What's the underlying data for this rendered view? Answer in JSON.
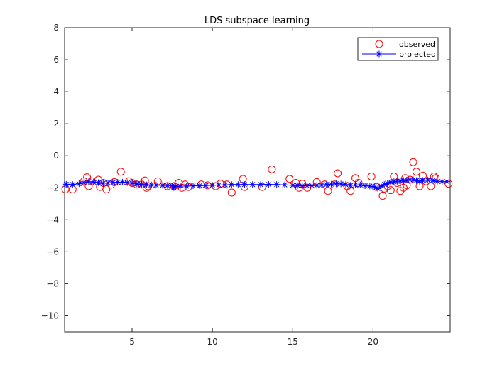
{
  "chart_data": {
    "type": "scatter",
    "title": "LDS subspace learning",
    "xlabel": "",
    "ylabel": "",
    "xlim": [
      0.8,
      24.8
    ],
    "ylim": [
      -11,
      8
    ],
    "xticks": [
      5,
      10,
      15,
      20
    ],
    "yticks": [
      8,
      6,
      4,
      2,
      0,
      -2,
      -4,
      -6,
      -8,
      -10
    ],
    "xtick_labels": [
      "5",
      "10",
      "15",
      "20"
    ],
    "ytick_labels": [
      "8",
      "6",
      "4",
      "2",
      "0",
      "−2",
      "−4",
      "−6",
      "−8",
      "−10"
    ],
    "grid": false,
    "legend_position": "top-right",
    "series": [
      {
        "name": "observed",
        "style": "markers-circle",
        "color": "#ff0000",
        "points": [
          [
            0.85,
            -2.1
          ],
          [
            1.3,
            -2.1
          ],
          [
            2.0,
            -1.6
          ],
          [
            2.2,
            -1.35
          ],
          [
            2.3,
            -1.9
          ],
          [
            2.5,
            -1.6
          ],
          [
            2.9,
            -1.5
          ],
          [
            3.0,
            -1.95
          ],
          [
            3.2,
            -1.7
          ],
          [
            3.4,
            -2.1
          ],
          [
            3.7,
            -1.8
          ],
          [
            3.9,
            -1.65
          ],
          [
            4.3,
            -1.0
          ],
          [
            4.8,
            -1.6
          ],
          [
            5.0,
            -1.7
          ],
          [
            5.3,
            -1.8
          ],
          [
            5.6,
            -1.8
          ],
          [
            5.8,
            -1.55
          ],
          [
            5.9,
            -2.0
          ],
          [
            6.0,
            -1.9
          ],
          [
            6.6,
            -1.6
          ],
          [
            7.2,
            -1.9
          ],
          [
            7.6,
            -1.9
          ],
          [
            7.9,
            -1.7
          ],
          [
            8.1,
            -2.0
          ],
          [
            8.3,
            -1.8
          ],
          [
            8.5,
            -1.95
          ],
          [
            9.3,
            -1.8
          ],
          [
            9.7,
            -1.85
          ],
          [
            10.2,
            -1.9
          ],
          [
            10.5,
            -1.75
          ],
          [
            10.9,
            -1.8
          ],
          [
            11.2,
            -2.3
          ],
          [
            11.9,
            -1.45
          ],
          [
            12.0,
            -1.95
          ],
          [
            13.1,
            -1.95
          ],
          [
            13.7,
            -0.85
          ],
          [
            14.8,
            -1.45
          ],
          [
            15.2,
            -1.7
          ],
          [
            15.4,
            -2.0
          ],
          [
            15.6,
            -1.75
          ],
          [
            15.9,
            -2.0
          ],
          [
            16.5,
            -1.65
          ],
          [
            17.0,
            -1.8
          ],
          [
            17.2,
            -2.2
          ],
          [
            17.6,
            -1.8
          ],
          [
            17.8,
            -1.1
          ],
          [
            18.4,
            -1.9
          ],
          [
            18.6,
            -2.2
          ],
          [
            18.9,
            -1.4
          ],
          [
            19.1,
            -1.7
          ],
          [
            19.9,
            -1.3
          ],
          [
            20.2,
            -1.95
          ],
          [
            20.6,
            -2.5
          ],
          [
            20.7,
            -2.05
          ],
          [
            20.9,
            -1.9
          ],
          [
            21.1,
            -2.15
          ],
          [
            21.3,
            -1.3
          ],
          [
            21.5,
            -1.7
          ],
          [
            21.7,
            -2.2
          ],
          [
            21.9,
            -2.0
          ],
          [
            22.0,
            -1.4
          ],
          [
            22.1,
            -1.85
          ],
          [
            22.3,
            -1.5
          ],
          [
            22.5,
            -0.4
          ],
          [
            22.7,
            -1.0
          ],
          [
            22.9,
            -1.9
          ],
          [
            23.1,
            -1.25
          ],
          [
            23.3,
            -1.6
          ],
          [
            23.6,
            -1.9
          ],
          [
            23.8,
            -1.3
          ],
          [
            23.9,
            -1.4
          ],
          [
            24.7,
            -1.75
          ]
        ]
      },
      {
        "name": "projected",
        "style": "line-star",
        "color": "#0000ff",
        "points": [
          [
            0.9,
            -1.78
          ],
          [
            1.3,
            -1.8
          ],
          [
            1.7,
            -1.75
          ],
          [
            2.0,
            -1.68
          ],
          [
            2.3,
            -1.62
          ],
          [
            2.6,
            -1.65
          ],
          [
            2.9,
            -1.68
          ],
          [
            3.2,
            -1.72
          ],
          [
            3.5,
            -1.7
          ],
          [
            3.8,
            -1.68
          ],
          [
            4.1,
            -1.66
          ],
          [
            4.4,
            -1.65
          ],
          [
            4.7,
            -1.68
          ],
          [
            5.0,
            -1.72
          ],
          [
            5.3,
            -1.76
          ],
          [
            5.6,
            -1.8
          ],
          [
            5.9,
            -1.82
          ],
          [
            6.2,
            -1.82
          ],
          [
            6.5,
            -1.84
          ],
          [
            6.9,
            -1.85
          ],
          [
            7.2,
            -1.86
          ],
          [
            7.5,
            -1.88
          ],
          [
            7.6,
            -2.0
          ],
          [
            7.7,
            -1.92
          ],
          [
            8.0,
            -1.9
          ],
          [
            8.4,
            -1.9
          ],
          [
            8.8,
            -1.88
          ],
          [
            9.2,
            -1.87
          ],
          [
            9.6,
            -1.86
          ],
          [
            10.0,
            -1.85
          ],
          [
            10.4,
            -1.83
          ],
          [
            10.8,
            -1.82
          ],
          [
            11.2,
            -1.8
          ],
          [
            11.6,
            -1.8
          ],
          [
            12.0,
            -1.8
          ],
          [
            12.5,
            -1.8
          ],
          [
            13.0,
            -1.8
          ],
          [
            13.5,
            -1.79
          ],
          [
            14.0,
            -1.8
          ],
          [
            14.5,
            -1.82
          ],
          [
            15.0,
            -1.85
          ],
          [
            15.3,
            -1.86
          ],
          [
            15.6,
            -1.88
          ],
          [
            15.9,
            -1.88
          ],
          [
            16.2,
            -1.87
          ],
          [
            16.5,
            -1.85
          ],
          [
            16.8,
            -1.83
          ],
          [
            17.1,
            -1.8
          ],
          [
            17.4,
            -1.78
          ],
          [
            17.7,
            -1.75
          ],
          [
            18.0,
            -1.76
          ],
          [
            18.3,
            -1.8
          ],
          [
            18.6,
            -1.85
          ],
          [
            18.9,
            -1.83
          ],
          [
            19.2,
            -1.82
          ],
          [
            19.5,
            -1.88
          ],
          [
            19.8,
            -1.9
          ],
          [
            20.1,
            -1.95
          ],
          [
            20.3,
            -2.05
          ],
          [
            20.5,
            -1.9
          ],
          [
            20.7,
            -1.8
          ],
          [
            20.9,
            -1.72
          ],
          [
            21.1,
            -1.65
          ],
          [
            21.3,
            -1.62
          ],
          [
            21.5,
            -1.6
          ],
          [
            21.7,
            -1.58
          ],
          [
            21.9,
            -1.55
          ],
          [
            22.1,
            -1.52
          ],
          [
            22.3,
            -1.5
          ],
          [
            22.5,
            -1.5
          ],
          [
            22.7,
            -1.55
          ],
          [
            22.9,
            -1.6
          ],
          [
            23.1,
            -1.55
          ],
          [
            23.4,
            -1.52
          ],
          [
            23.7,
            -1.55
          ],
          [
            24.0,
            -1.6
          ],
          [
            24.3,
            -1.62
          ],
          [
            24.6,
            -1.62
          ]
        ]
      }
    ]
  }
}
